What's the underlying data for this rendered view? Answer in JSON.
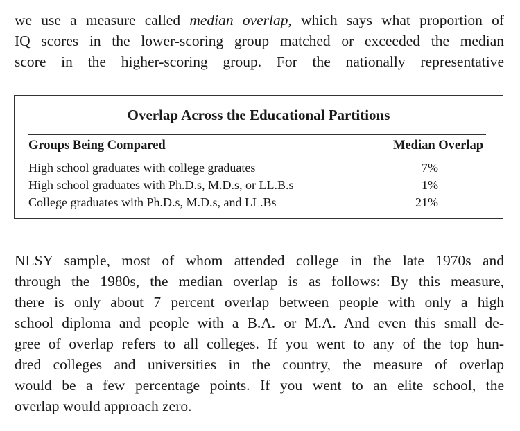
{
  "top_paragraph": {
    "lines": [
      "we use a measure called ",
      "IQ scores in the lower-scoring group matched or exceeded the median",
      "score in the higher-scoring group. For the nationally representative"
    ],
    "line1_italic": "median overlap",
    "line1_rest": ", which says what proportion of"
  },
  "table": {
    "title": "Overlap Across the Educational Partitions",
    "col_group": "Groups Being Compared",
    "col_overlap": "Median Overlap",
    "rows": [
      {
        "group": "High school graduates with college graduates",
        "overlap": "7%"
      },
      {
        "group": "High school graduates with Ph.D.s, M.D.s, or LL.B.s",
        "overlap": "1%"
      },
      {
        "group": "College graduates with Ph.D.s, M.D.s, and LL.Bs",
        "overlap": "21%"
      }
    ]
  },
  "bottom_paragraph": {
    "lines": [
      "NLSY sample, most of whom attended college in the late 1970s and",
      "through the 1980s, the median overlap is as follows: By this measure,",
      "there is only about 7 percent overlap between people with only a high",
      "school diploma and people with a B.A. or M.A. And even this small de-",
      "gree of overlap refers to all colleges. If you went to any of the top hun-",
      "dred colleges and universities in the country, the measure of overlap",
      "would be a few percentage points. If you went to an elite school, the",
      "overlap would approach zero."
    ]
  }
}
